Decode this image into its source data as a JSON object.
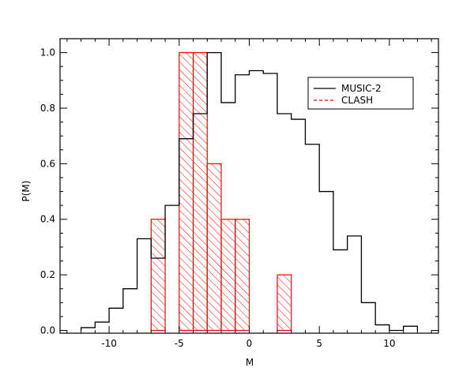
{
  "chart_data": {
    "type": "bar",
    "xlabel": "M",
    "ylabel": "P(M)",
    "xlim": [
      -13.5,
      13.5
    ],
    "ylim": [
      -0.01,
      1.05
    ],
    "xticks": [
      "-10",
      "-5",
      "0",
      "5",
      "10"
    ],
    "xtick_values": [
      -10,
      -5,
      0,
      5,
      10
    ],
    "yticks": [
      "0.0",
      "0.2",
      "0.4",
      "0.6",
      "0.8",
      "1.0"
    ],
    "ytick_values": [
      0.0,
      0.2,
      0.4,
      0.6,
      0.8,
      1.0
    ],
    "grid": false,
    "legend_position": "top-right",
    "bin_edges": [
      -12,
      -11,
      -10,
      -9,
      -8,
      -7,
      -6,
      -5,
      -4,
      -3,
      -2,
      -1,
      0,
      1,
      2,
      3,
      4,
      5,
      6,
      7,
      8,
      9,
      10,
      11,
      12
    ],
    "series": [
      {
        "name": "MUSIC-2",
        "style": "step",
        "color": "#000000",
        "values": [
          0.01,
          0.03,
          0.08,
          0.15,
          0.33,
          0.26,
          0.45,
          0.69,
          0.78,
          1.0,
          0.82,
          0.92,
          0.935,
          0.925,
          0.78,
          0.76,
          0.67,
          0.5,
          0.29,
          0.34,
          0.1,
          0.02,
          0.0,
          0.015
        ]
      },
      {
        "name": "CLASH",
        "style": "hatched-bar",
        "color": "#ff0000",
        "values": [
          0,
          0,
          0,
          0,
          0,
          0.4,
          0,
          1.0,
          1.0,
          0.6,
          0.4,
          0.4,
          0,
          0,
          0.2,
          0,
          0,
          0,
          0,
          0,
          0,
          0,
          0,
          0
        ]
      }
    ]
  }
}
